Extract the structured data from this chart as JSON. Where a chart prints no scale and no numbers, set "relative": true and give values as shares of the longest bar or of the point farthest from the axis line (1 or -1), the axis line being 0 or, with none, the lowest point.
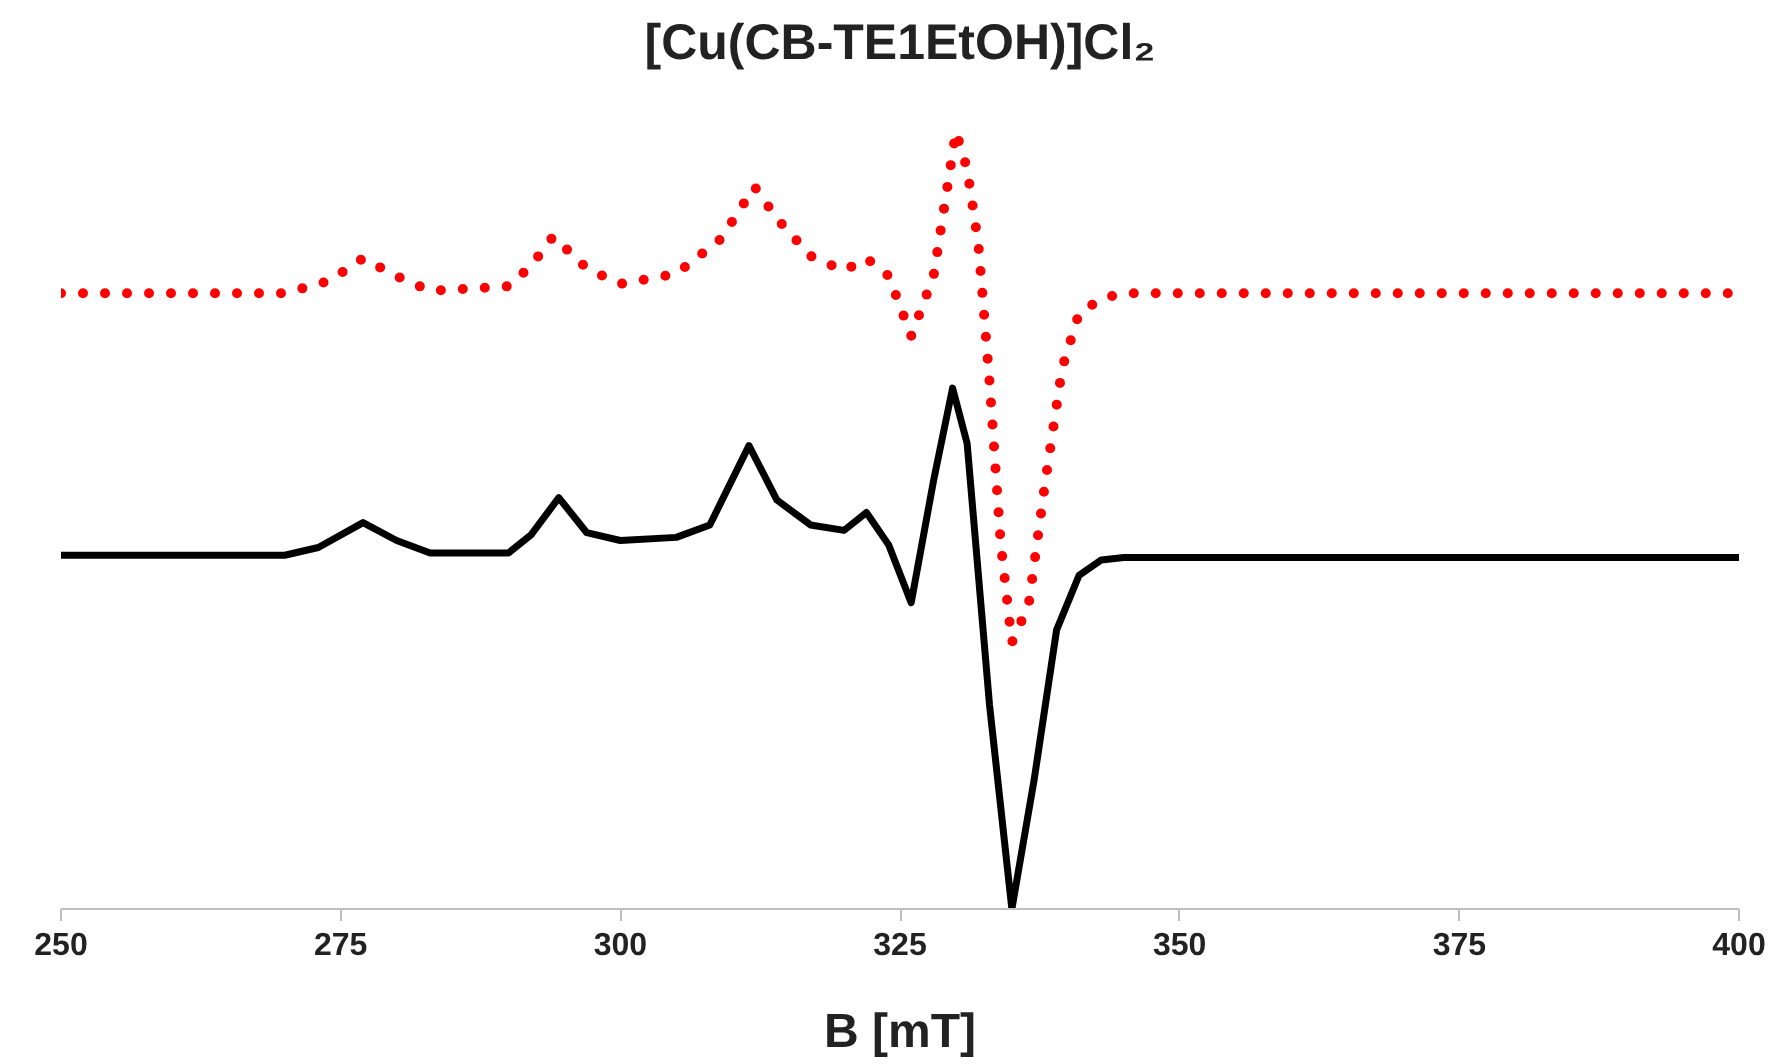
{
  "chart_data": {
    "type": "line",
    "title": "[Cu(CB-TE1EtOH)]Cl₂",
    "xlabel": "B [mT]",
    "relative": true,
    "xlim": [
      250,
      400
    ],
    "xticks": [
      250,
      275,
      300,
      325,
      350,
      375,
      400
    ],
    "grid": false,
    "tick_labels": "x",
    "marker": "none",
    "series": [
      {
        "color": "#ff0000",
        "line_style": "dotted",
        "x": [
          250,
          270,
          274,
          277,
          280,
          283,
          290,
          292,
          294,
          297,
          300,
          305,
          309,
          312,
          314,
          317,
          320,
          322,
          324,
          326,
          328,
          330,
          331,
          332,
          333,
          334,
          335,
          336.5,
          338,
          339.5,
          341,
          343,
          345,
          400
        ],
        "values": [
          0.792,
          0.792,
          0.808,
          0.837,
          0.814,
          0.795,
          0.801,
          0.827,
          0.865,
          0.824,
          0.804,
          0.817,
          0.862,
          0.929,
          0.888,
          0.84,
          0.821,
          0.837,
          0.814,
          0.737,
          0.814,
          1.0,
          0.952,
          0.856,
          0.679,
          0.471,
          0.343,
          0.391,
          0.551,
          0.696,
          0.766,
          0.785,
          0.792,
          0.792
        ]
      },
      {
        "color": "#000000",
        "line_style": "solid",
        "x": [
          250,
          270,
          273,
          277,
          280,
          283,
          290,
          292,
          294.5,
          297,
          300,
          305,
          308,
          311.5,
          314,
          317,
          320,
          322,
          324,
          326,
          328,
          329.7,
          331,
          333,
          335,
          337,
          339,
          341,
          343,
          345,
          400
        ],
        "values": [
          0.455,
          0.455,
          0.465,
          0.497,
          0.474,
          0.458,
          0.458,
          0.481,
          0.529,
          0.484,
          0.474,
          0.478,
          0.494,
          0.596,
          0.526,
          0.494,
          0.487,
          0.51,
          0.468,
          0.394,
          0.551,
          0.67,
          0.599,
          0.263,
          0,
          0.167,
          0.359,
          0.429,
          0.449,
          0.452,
          0.452
        ]
      }
    ]
  }
}
